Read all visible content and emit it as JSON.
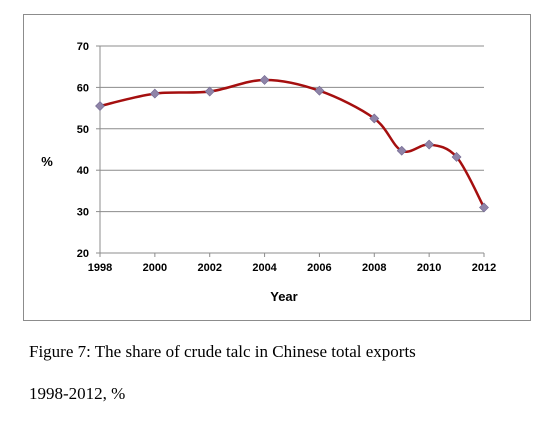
{
  "chart_data": {
    "type": "line",
    "title": "",
    "xlabel": "Year",
    "ylabel": "%",
    "ylim": [
      20,
      70
    ],
    "yticks": [
      20,
      30,
      40,
      50,
      60,
      70
    ],
    "xlim": [
      1998,
      2012
    ],
    "xticks": [
      1998,
      2000,
      2002,
      2004,
      2006,
      2008,
      2010,
      2012
    ],
    "grid": "horizontal",
    "legend": "none",
    "line_color": "#a50f0f",
    "marker_color": "#8f84a8",
    "series": [
      {
        "x": [
          1998,
          2000,
          2002,
          2004,
          2006,
          2008,
          2009,
          2010,
          2011,
          2012
        ],
        "values": [
          55.5,
          58.5,
          59,
          61.8,
          59.2,
          52.5,
          44.7,
          46.2,
          43.2,
          31
        ]
      }
    ]
  },
  "caption": {
    "line1": "Figure 7: The share of crude talc in Chinese total exports",
    "line2": "1998-2012, %"
  }
}
